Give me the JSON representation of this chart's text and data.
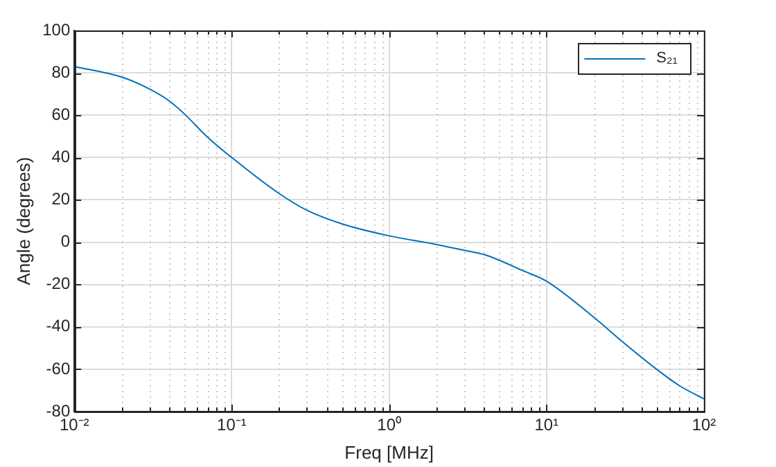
{
  "chart_data": {
    "type": "line",
    "xlabel": "Freq [MHz]",
    "ylabel": "Angle (degrees)",
    "log": "x",
    "grid": true,
    "legend": "top right",
    "marker": "none",
    "line_style": "solid",
    "xlim": [
      0.01,
      100
    ],
    "ylim": [
      -80,
      100
    ],
    "xticks": [
      {
        "value": 0.01,
        "label": "10⁻²"
      },
      {
        "value": 0.02,
        "label": null
      },
      {
        "value": 0.03,
        "label": null
      },
      {
        "value": 0.04,
        "label": null
      },
      {
        "value": 0.05,
        "label": null
      },
      {
        "value": 0.06,
        "label": null
      },
      {
        "value": 0.07,
        "label": null
      },
      {
        "value": 0.08,
        "label": null
      },
      {
        "value": 0.09,
        "label": null
      },
      {
        "value": 0.1,
        "label": "10⁻¹"
      },
      {
        "value": 0.2,
        "label": null
      },
      {
        "value": 0.3,
        "label": null
      },
      {
        "value": 0.4,
        "label": null
      },
      {
        "value": 0.5,
        "label": null
      },
      {
        "value": 0.6,
        "label": null
      },
      {
        "value": 0.7,
        "label": null
      },
      {
        "value": 0.8,
        "label": null
      },
      {
        "value": 0.9,
        "label": null
      },
      {
        "value": 1,
        "label": "10⁰"
      },
      {
        "value": 2,
        "label": null
      },
      {
        "value": 3,
        "label": null
      },
      {
        "value": 4,
        "label": null
      },
      {
        "value": 5,
        "label": null
      },
      {
        "value": 6,
        "label": null
      },
      {
        "value": 7,
        "label": null
      },
      {
        "value": 8,
        "label": null
      },
      {
        "value": 9,
        "label": null
      },
      {
        "value": 10,
        "label": "10¹"
      },
      {
        "value": 20,
        "label": null
      },
      {
        "value": 30,
        "label": null
      },
      {
        "value": 40,
        "label": null
      },
      {
        "value": 50,
        "label": null
      },
      {
        "value": 60,
        "label": null
      },
      {
        "value": 70,
        "label": null
      },
      {
        "value": 80,
        "label": null
      },
      {
        "value": 90,
        "label": null
      },
      {
        "value": 100,
        "label": "10²"
      }
    ],
    "yticks": [
      -80,
      -60,
      -40,
      -20,
      0,
      20,
      40,
      60,
      80,
      100
    ],
    "series": [
      {
        "name": "S₂₁",
        "color": "#0072bd",
        "x": [
          0.01,
          0.02,
          0.03,
          0.04,
          0.05,
          0.07,
          0.1,
          0.2,
          0.3,
          0.5,
          1,
          2,
          3,
          4,
          5,
          7,
          10,
          20,
          30,
          50,
          70,
          100
        ],
        "values": [
          83,
          78,
          72.4,
          66.8,
          60.6,
          49.7,
          40,
          23,
          15.1,
          8.7,
          3,
          -1.1,
          -3.8,
          -5.8,
          -8.5,
          -13.3,
          -18.4,
          -35.5,
          -46.7,
          -60,
          -67.8,
          -74
        ]
      }
    ]
  }
}
